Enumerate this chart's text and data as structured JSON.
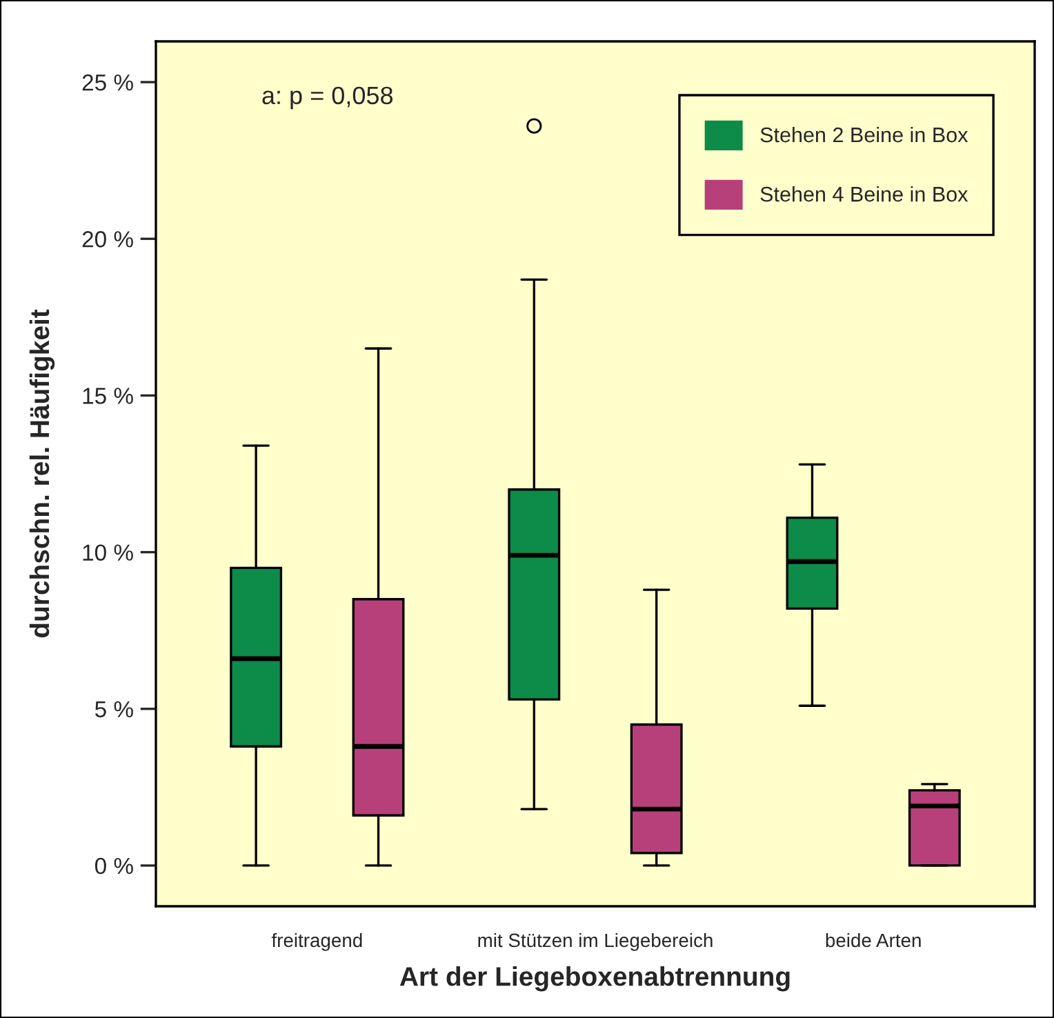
{
  "chart_data": {
    "type": "box",
    "xlabel": "Art der Liegeboxenabtrennung",
    "ylabel": "durchschn. rel. Häufigkeit",
    "categories": [
      "freitragend",
      "mit Stützen im Liegebereich",
      "beide Arten"
    ],
    "ylim": [
      -1.3,
      26.3
    ],
    "yticks": [
      {
        "value": 0,
        "label": "0 %"
      },
      {
        "value": 5,
        "label": "5 %"
      },
      {
        "value": 10,
        "label": "10 %"
      },
      {
        "value": 15,
        "label": "15 %"
      },
      {
        "value": 20,
        "label": "20 %"
      },
      {
        "value": 25,
        "label": "25 %"
      }
    ],
    "series": [
      {
        "name": "Stehen 2 Beine in Box",
        "color": "#0c8c48",
        "boxes": [
          {
            "low": 0,
            "q1": 3.8,
            "median": 6.6,
            "q3": 9.5,
            "high": 13.4
          },
          {
            "low": 1.8,
            "q1": 5.3,
            "median": 9.9,
            "q3": 12.0,
            "high": 18.7,
            "outliers": [
              23.6
            ]
          },
          {
            "low": 5.1,
            "q1": 8.2,
            "median": 9.7,
            "q3": 11.1,
            "high": 12.8
          }
        ]
      },
      {
        "name": "Stehen 4 Beine in Box",
        "color": "#b8407a",
        "boxes": [
          {
            "low": 0,
            "q1": 1.6,
            "median": 3.8,
            "q3": 8.5,
            "high": 16.5
          },
          {
            "low": 0,
            "q1": 0.4,
            "median": 1.8,
            "q3": 4.5,
            "high": 8.8
          },
          {
            "low": 0,
            "q1": 0,
            "median": 1.9,
            "q3": 2.4,
            "high": 2.6
          }
        ]
      }
    ],
    "annotations": [
      "a: p = 0,058"
    ],
    "legend": "top right",
    "grid": false
  }
}
